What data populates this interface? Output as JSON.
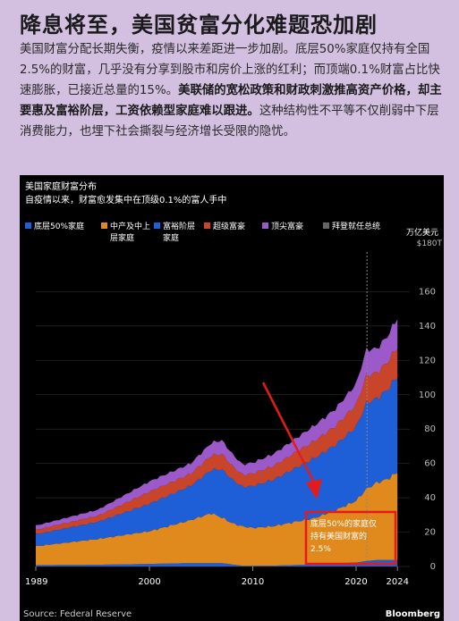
{
  "headline": "降息将至，美国贫富分化难题恐加剧",
  "article": {
    "p1": "美国财富分配长期失衡，疫情以来差距进一步加剧。底层50%家庭仅持有全国2.5%的财富，几乎没有分享到股市和房价上涨的红利；而顶端0.1%财富占比快速膨胀，已接近总量的15%。",
    "p2_bold": "美联储的宽松政策和财政刺激推高资产价格，却主要惠及富裕阶层，工资依赖型家庭难以跟进。",
    "p3": "这种结构性不平等不仅削弱中下层消费能力，也埋下社会撕裂与经济增长受限的隐忧。"
  },
  "chart_data": {
    "type": "area",
    "title": "美国家庭财富分布",
    "subtitle": "自疫情以来，财富愈发集中在顶级0.1%的富人手中",
    "unit_label": "万亿美元",
    "unit_top_label": "$180T",
    "x_ticks": [
      "1989",
      "2000",
      "2010",
      "2020",
      "2024"
    ],
    "y_ticks": [
      0,
      20,
      40,
      60,
      80,
      100,
      120,
      140,
      160
    ],
    "xlim": [
      1989,
      2024.5
    ],
    "ylim": [
      0,
      180
    ],
    "series": [
      {
        "name": "底层50%家庭",
        "color": "#1e5fd8",
        "points": [
          [
            1989,
            0.8
          ],
          [
            1995,
            1.0
          ],
          [
            2000,
            1.5
          ],
          [
            2004,
            2.0
          ],
          [
            2007,
            2.0
          ],
          [
            2009,
            0.4
          ],
          [
            2012,
            0.5
          ],
          [
            2016,
            1.2
          ],
          [
            2020,
            2.3
          ],
          [
            2021,
            3.2
          ],
          [
            2022,
            3.8
          ],
          [
            2024,
            3.8
          ]
        ]
      },
      {
        "name": "中产及中上层家庭",
        "color": "#e0891c",
        "points": [
          [
            1989,
            11
          ],
          [
            1995,
            15
          ],
          [
            2000,
            19
          ],
          [
            2004,
            25
          ],
          [
            2006,
            29
          ],
          [
            2008,
            24
          ],
          [
            2010,
            22
          ],
          [
            2012,
            23
          ],
          [
            2014,
            25
          ],
          [
            2016,
            27
          ],
          [
            2018,
            31
          ],
          [
            2020,
            36
          ],
          [
            2021,
            42
          ],
          [
            2022,
            45
          ],
          [
            2023,
            47
          ],
          [
            2024,
            51
          ]
        ]
      },
      {
        "name": "富裕阶层家庭",
        "color": "#1e5fd8",
        "points": [
          [
            1989,
            7
          ],
          [
            1995,
            10
          ],
          [
            2000,
            16
          ],
          [
            2004,
            20
          ],
          [
            2007,
            28
          ],
          [
            2009,
            23
          ],
          [
            2012,
            27
          ],
          [
            2016,
            35
          ],
          [
            2018,
            38
          ],
          [
            2020,
            43
          ],
          [
            2021,
            50
          ],
          [
            2022,
            49
          ],
          [
            2023,
            52
          ],
          [
            2024,
            56
          ]
        ]
      },
      {
        "name": "超级富豪",
        "color": "#c8452a",
        "points": [
          [
            1989,
            2.5
          ],
          [
            1995,
            3.5
          ],
          [
            2000,
            7
          ],
          [
            2004,
            7
          ],
          [
            2007,
            9
          ],
          [
            2009,
            7
          ],
          [
            2012,
            8
          ],
          [
            2016,
            10
          ],
          [
            2018,
            11
          ],
          [
            2020,
            13
          ],
          [
            2021,
            16
          ],
          [
            2022,
            15
          ],
          [
            2023,
            16
          ],
          [
            2024,
            17
          ]
        ]
      },
      {
        "name": "顶尖富豪",
        "color": "#9b59c9",
        "points": [
          [
            1989,
            2.5
          ],
          [
            1995,
            3.5
          ],
          [
            2000,
            6
          ],
          [
            2004,
            6
          ],
          [
            2007,
            8
          ],
          [
            2009,
            6
          ],
          [
            2012,
            7
          ],
          [
            2016,
            9
          ],
          [
            2018,
            10
          ],
          [
            2020,
            12
          ],
          [
            2021,
            15
          ],
          [
            2022,
            14
          ],
          [
            2023,
            15
          ],
          [
            2024,
            17
          ]
        ]
      }
    ],
    "marker_label": "拜登就任总统",
    "marker_x": 2021.05,
    "annotation": "底层50%的家庭仅持有美国财富的2.5%",
    "annotation_lines": [
      "底层50%的家庭仅",
      "持有美国财富的",
      "2.5%"
    ],
    "legend_labels": {
      "s0": "底层50%家庭",
      "s1a": "中产及中上",
      "s1b": "层家庭",
      "s2a": "富裕阶层",
      "s2b": "家庭",
      "s3": "超级富豪",
      "s4": "顶尖富豪",
      "s5": "拜登就任总统"
    },
    "source": "Source: Federal Reserve",
    "brand": "Bloomberg",
    "colors": {
      "bottom50": "#1e5fd8",
      "middle": "#e0891c",
      "affluent": "#1e5fd8",
      "ultra": "#c8452a",
      "top": "#9b59c9",
      "marker": "#666666",
      "annotation": "#e51b1b"
    }
  }
}
